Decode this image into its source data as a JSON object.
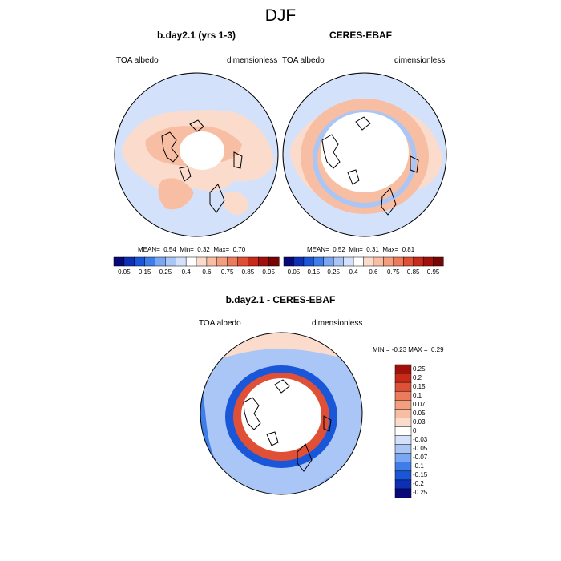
{
  "season": "DJF",
  "panels": [
    {
      "title": "b.day2.1 (yrs 1-3)",
      "variable": "TOA albedo",
      "units": "dimensionless",
      "mean_label": "MEAN=",
      "mean": "0.54",
      "min_label": "Min=",
      "min": "0.32",
      "max_label": "Max=",
      "max": "0.70"
    },
    {
      "title": "CERES-EBAF",
      "variable": "TOA albedo",
      "units": "dimensionless",
      "mean_label": "MEAN=",
      "mean": "0.52",
      "min_label": "Min=",
      "min": "0.31",
      "max_label": "Max=",
      "max": "0.81"
    }
  ],
  "abs_colorbar": {
    "labels": [
      "0.05",
      "0.15",
      "0.25",
      "0.4",
      "0.6",
      "0.75",
      "0.85",
      "0.95"
    ],
    "colors": [
      "#08087a",
      "#0c2fb4",
      "#1a56d8",
      "#3f7ee8",
      "#7ba6f1",
      "#a9c6f6",
      "#d3e2fa",
      "#ffffff",
      "#fbdccc",
      "#f8bea4",
      "#f49e80",
      "#ec7a5c",
      "#df5036",
      "#c72a18",
      "#a3100c",
      "#780404"
    ]
  },
  "diff": {
    "title": "b.day2.1 - CERES-EBAF",
    "variable": "TOA albedo",
    "units": "dimensionless",
    "min_label": "MIN =",
    "min": "-0.23",
    "max_label": "MAX =",
    "max": "0.29",
    "colorbar_labels": [
      "0.25",
      "0.2",
      "0.15",
      "0.1",
      "0.07",
      "0.05",
      "0.03",
      "0",
      "-0.03",
      "-0.05",
      "-0.07",
      "-0.1",
      "-0.15",
      "-0.2",
      "-0.25"
    ],
    "colorbar_colors": [
      "#a3100c",
      "#c72a18",
      "#df5036",
      "#ec7a5c",
      "#f49e80",
      "#f8bea4",
      "#fbdccc",
      "#ffffff",
      "#d3e2fa",
      "#a9c6f6",
      "#7ba6f1",
      "#3f7ee8",
      "#1a56d8",
      "#0c2fb4",
      "#08087a"
    ]
  }
}
